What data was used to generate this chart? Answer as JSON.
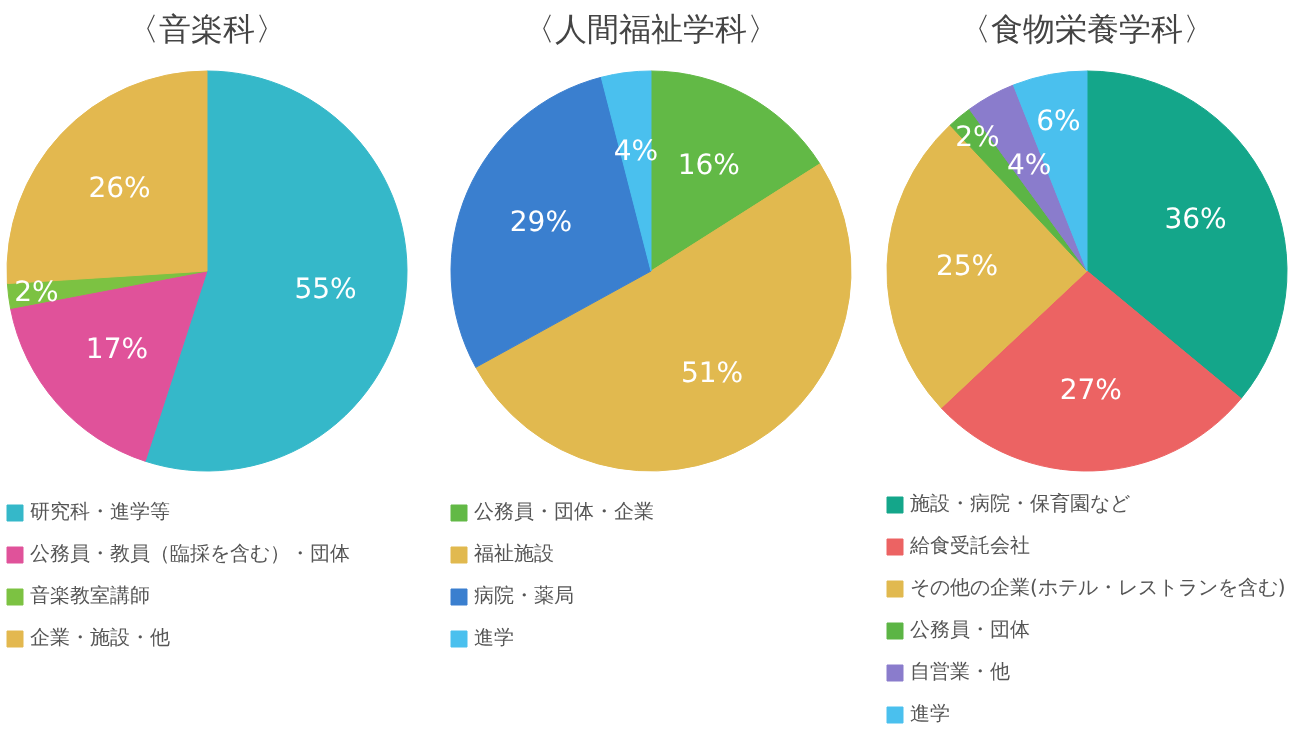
{
  "chart_data": [
    {
      "type": "pie",
      "title": "〈音楽科〉",
      "categories": [
        "研究科・進学等",
        "公務員・教員（臨採を含む）・団体",
        "音楽教室講師",
        "企業・施設・他"
      ],
      "values": [
        55,
        17,
        2,
        26
      ],
      "colors": [
        "#35b8c9",
        "#e0529a",
        "#7cc242",
        "#e3b84f"
      ],
      "value_labels": [
        "55%",
        "17%",
        "2%",
        "26%"
      ],
      "legend": "bottom"
    },
    {
      "type": "pie",
      "title": "〈人間福祉学科〉",
      "categories": [
        "公務員・団体・企業",
        "福祉施設",
        "病院・薬局",
        "進学"
      ],
      "values": [
        16,
        51,
        29,
        4
      ],
      "colors": [
        "#62b946",
        "#e1b94f",
        "#3a7fcf",
        "#4ac0ee"
      ],
      "value_labels": [
        "16%",
        "51%",
        "29%",
        "4%"
      ],
      "legend": "bottom"
    },
    {
      "type": "pie",
      "title": "〈食物栄養学科〉",
      "categories": [
        "施設・病院・保育園など",
        "給食受託会社",
        "その他の企業(ホテル・レストランを含む)",
        "公務員・団体",
        "自営業・他",
        "進学"
      ],
      "values": [
        36,
        27,
        25,
        2,
        4,
        6
      ],
      "colors": [
        "#14a68a",
        "#ec6363",
        "#e1b94f",
        "#5cb545",
        "#8a7ccc",
        "#4ac0ee"
      ],
      "value_labels": [
        "36%",
        "27%",
        "25%",
        "2%",
        "4%",
        "6%"
      ],
      "legend": "bottom"
    }
  ]
}
